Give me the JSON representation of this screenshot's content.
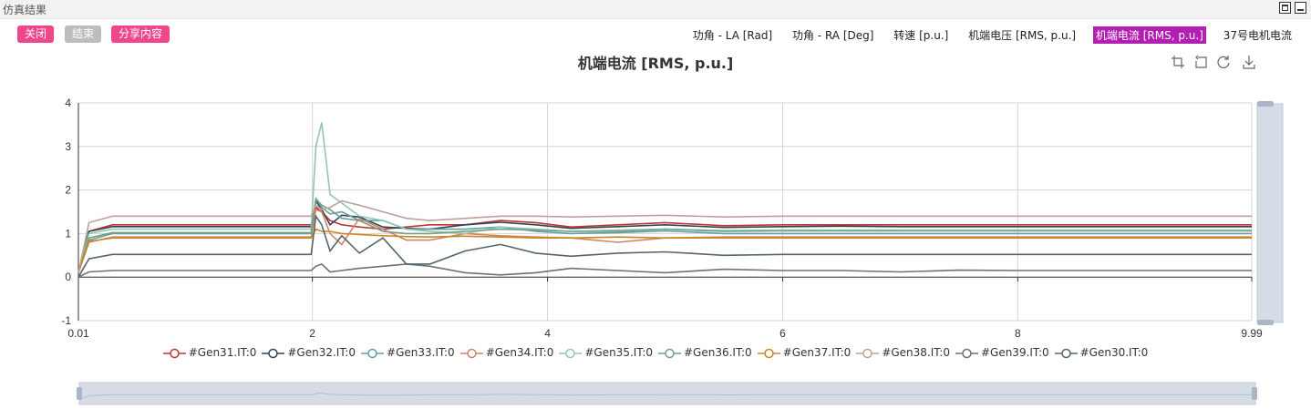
{
  "window": {
    "title": "仿真结果"
  },
  "buttons": {
    "close": "关闭",
    "end": "结束",
    "share": "分享内容"
  },
  "tabs": [
    {
      "label": "功角 - LA [Rad]",
      "active": false
    },
    {
      "label": "功角 - RA [Deg]",
      "active": false
    },
    {
      "label": "转速 [p.u.]",
      "active": false
    },
    {
      "label": "机端电压 [RMS, p.u.]",
      "active": false
    },
    {
      "label": "机端电流 [RMS, p.u.]",
      "active": true
    },
    {
      "label": "37号电机电流",
      "active": false
    }
  ],
  "toolbox": [
    "crop-icon",
    "undo-icon",
    "refresh-icon",
    "download-icon"
  ],
  "chart_data": {
    "type": "line",
    "title": "机端电流 [RMS, p.u.]",
    "xlim": [
      0.01,
      9.99
    ],
    "ylim": [
      -1,
      4
    ],
    "x_ticks": [
      "0.01",
      "2",
      "4",
      "6",
      "8",
      "9.99"
    ],
    "y_ticks": [
      "4",
      "3",
      "2",
      "1",
      "0",
      "-1"
    ],
    "grid": true,
    "legend_position": "bottom",
    "x": [
      0.01,
      0.1,
      0.3,
      1.99,
      2.03,
      2.08,
      2.15,
      2.25,
      2.4,
      2.6,
      2.8,
      3.0,
      3.3,
      3.6,
      3.9,
      4.2,
      4.6,
      5.0,
      5.5,
      6.0,
      6.5,
      7.0,
      7.5,
      8.0,
      8.5,
      9.0,
      9.5,
      9.99
    ],
    "series": [
      {
        "name": "#Gen31.IT:0",
        "color": "#c23531",
        "values": [
          0.1,
          1.05,
          1.2,
          1.2,
          1.6,
          1.5,
          1.3,
          1.2,
          1.15,
          1.1,
          1.15,
          1.2,
          1.2,
          1.3,
          1.25,
          1.15,
          1.2,
          1.25,
          1.18,
          1.2,
          1.2,
          1.2,
          1.2,
          1.2,
          1.2,
          1.2,
          1.2,
          1.2
        ]
      },
      {
        "name": "#Gen32.IT:0",
        "color": "#2f4554",
        "values": [
          0.1,
          1.05,
          1.16,
          1.16,
          1.75,
          1.55,
          1.2,
          1.42,
          1.38,
          1.15,
          1.12,
          1.1,
          1.2,
          1.26,
          1.2,
          1.12,
          1.16,
          1.2,
          1.14,
          1.16,
          1.17,
          1.16,
          1.16,
          1.16,
          1.16,
          1.16,
          1.16,
          1.16
        ]
      },
      {
        "name": "#Gen33.IT:0",
        "color": "#61a0a8",
        "values": [
          0.1,
          0.85,
          1.0,
          1.0,
          1.8,
          1.6,
          1.45,
          1.5,
          1.3,
          1.3,
          1.1,
          1.1,
          1.1,
          1.15,
          1.05,
          1.0,
          1.02,
          1.06,
          1.0,
          1.0,
          1.0,
          1.0,
          1.0,
          1.0,
          1.0,
          1.0,
          1.0,
          1.0
        ]
      },
      {
        "name": "#Gen34.IT:0",
        "color": "#d48265",
        "values": [
          0.1,
          0.8,
          0.92,
          0.92,
          1.55,
          1.5,
          1.0,
          0.75,
          1.35,
          1.1,
          0.85,
          0.85,
          1.0,
          0.95,
          0.92,
          0.9,
          0.8,
          0.9,
          0.92,
          0.92,
          0.92,
          0.92,
          0.92,
          0.92,
          0.92,
          0.92,
          0.92,
          0.92
        ]
      },
      {
        "name": "#Gen35.IT:0",
        "color": "#91c7ae",
        "values": [
          0.1,
          1.0,
          1.1,
          1.1,
          3.0,
          3.55,
          1.9,
          1.7,
          1.4,
          1.3,
          1.1,
          1.05,
          1.0,
          1.15,
          1.1,
          1.05,
          1.08,
          1.1,
          1.07,
          1.08,
          1.08,
          1.08,
          1.08,
          1.08,
          1.08,
          1.08,
          1.08,
          1.08
        ]
      },
      {
        "name": "#Gen36.IT:0",
        "color": "#749f83",
        "values": [
          0.1,
          0.9,
          1.02,
          1.02,
          1.8,
          1.65,
          1.55,
          1.35,
          1.3,
          1.05,
          1.0,
          1.0,
          1.05,
          1.1,
          1.08,
          1.05,
          1.05,
          1.1,
          1.05,
          1.06,
          1.06,
          1.06,
          1.06,
          1.06,
          1.06,
          1.06,
          1.06,
          1.06
        ]
      },
      {
        "name": "#Gen37.IT:0",
        "color": "#ca8622",
        "values": [
          0.1,
          0.82,
          0.9,
          0.9,
          1.1,
          1.05,
          1.05,
          1.0,
          0.98,
          0.95,
          0.93,
          0.92,
          0.94,
          0.92,
          0.9,
          0.9,
          0.92,
          0.9,
          0.9,
          0.9,
          0.9,
          0.9,
          0.9,
          0.9,
          0.9,
          0.9,
          0.9,
          0.9
        ]
      },
      {
        "name": "#Gen38.IT:0",
        "color": "#bda29a",
        "values": [
          0.1,
          1.25,
          1.4,
          1.4,
          1.65,
          1.55,
          1.6,
          1.75,
          1.65,
          1.5,
          1.35,
          1.3,
          1.35,
          1.4,
          1.4,
          1.38,
          1.4,
          1.42,
          1.38,
          1.4,
          1.4,
          1.4,
          1.4,
          1.4,
          1.4,
          1.4,
          1.4,
          1.4
        ]
      },
      {
        "name": "#Gen39.IT:0",
        "color": "#6e7074",
        "values": [
          0.0,
          0.12,
          0.15,
          0.15,
          0.25,
          0.3,
          0.12,
          0.15,
          0.2,
          0.25,
          0.3,
          0.25,
          0.1,
          0.05,
          0.1,
          0.2,
          0.15,
          0.1,
          0.18,
          0.15,
          0.15,
          0.12,
          0.16,
          0.15,
          0.15,
          0.15,
          0.15,
          0.15
        ]
      },
      {
        "name": "#Gen30.IT:0",
        "color": "#546570",
        "values": [
          0.0,
          0.42,
          0.52,
          0.52,
          1.4,
          1.2,
          0.6,
          0.95,
          0.55,
          0.9,
          0.3,
          0.3,
          0.6,
          0.75,
          0.55,
          0.48,
          0.55,
          0.58,
          0.5,
          0.52,
          0.52,
          0.52,
          0.52,
          0.52,
          0.52,
          0.52,
          0.52,
          0.52
        ]
      }
    ]
  }
}
